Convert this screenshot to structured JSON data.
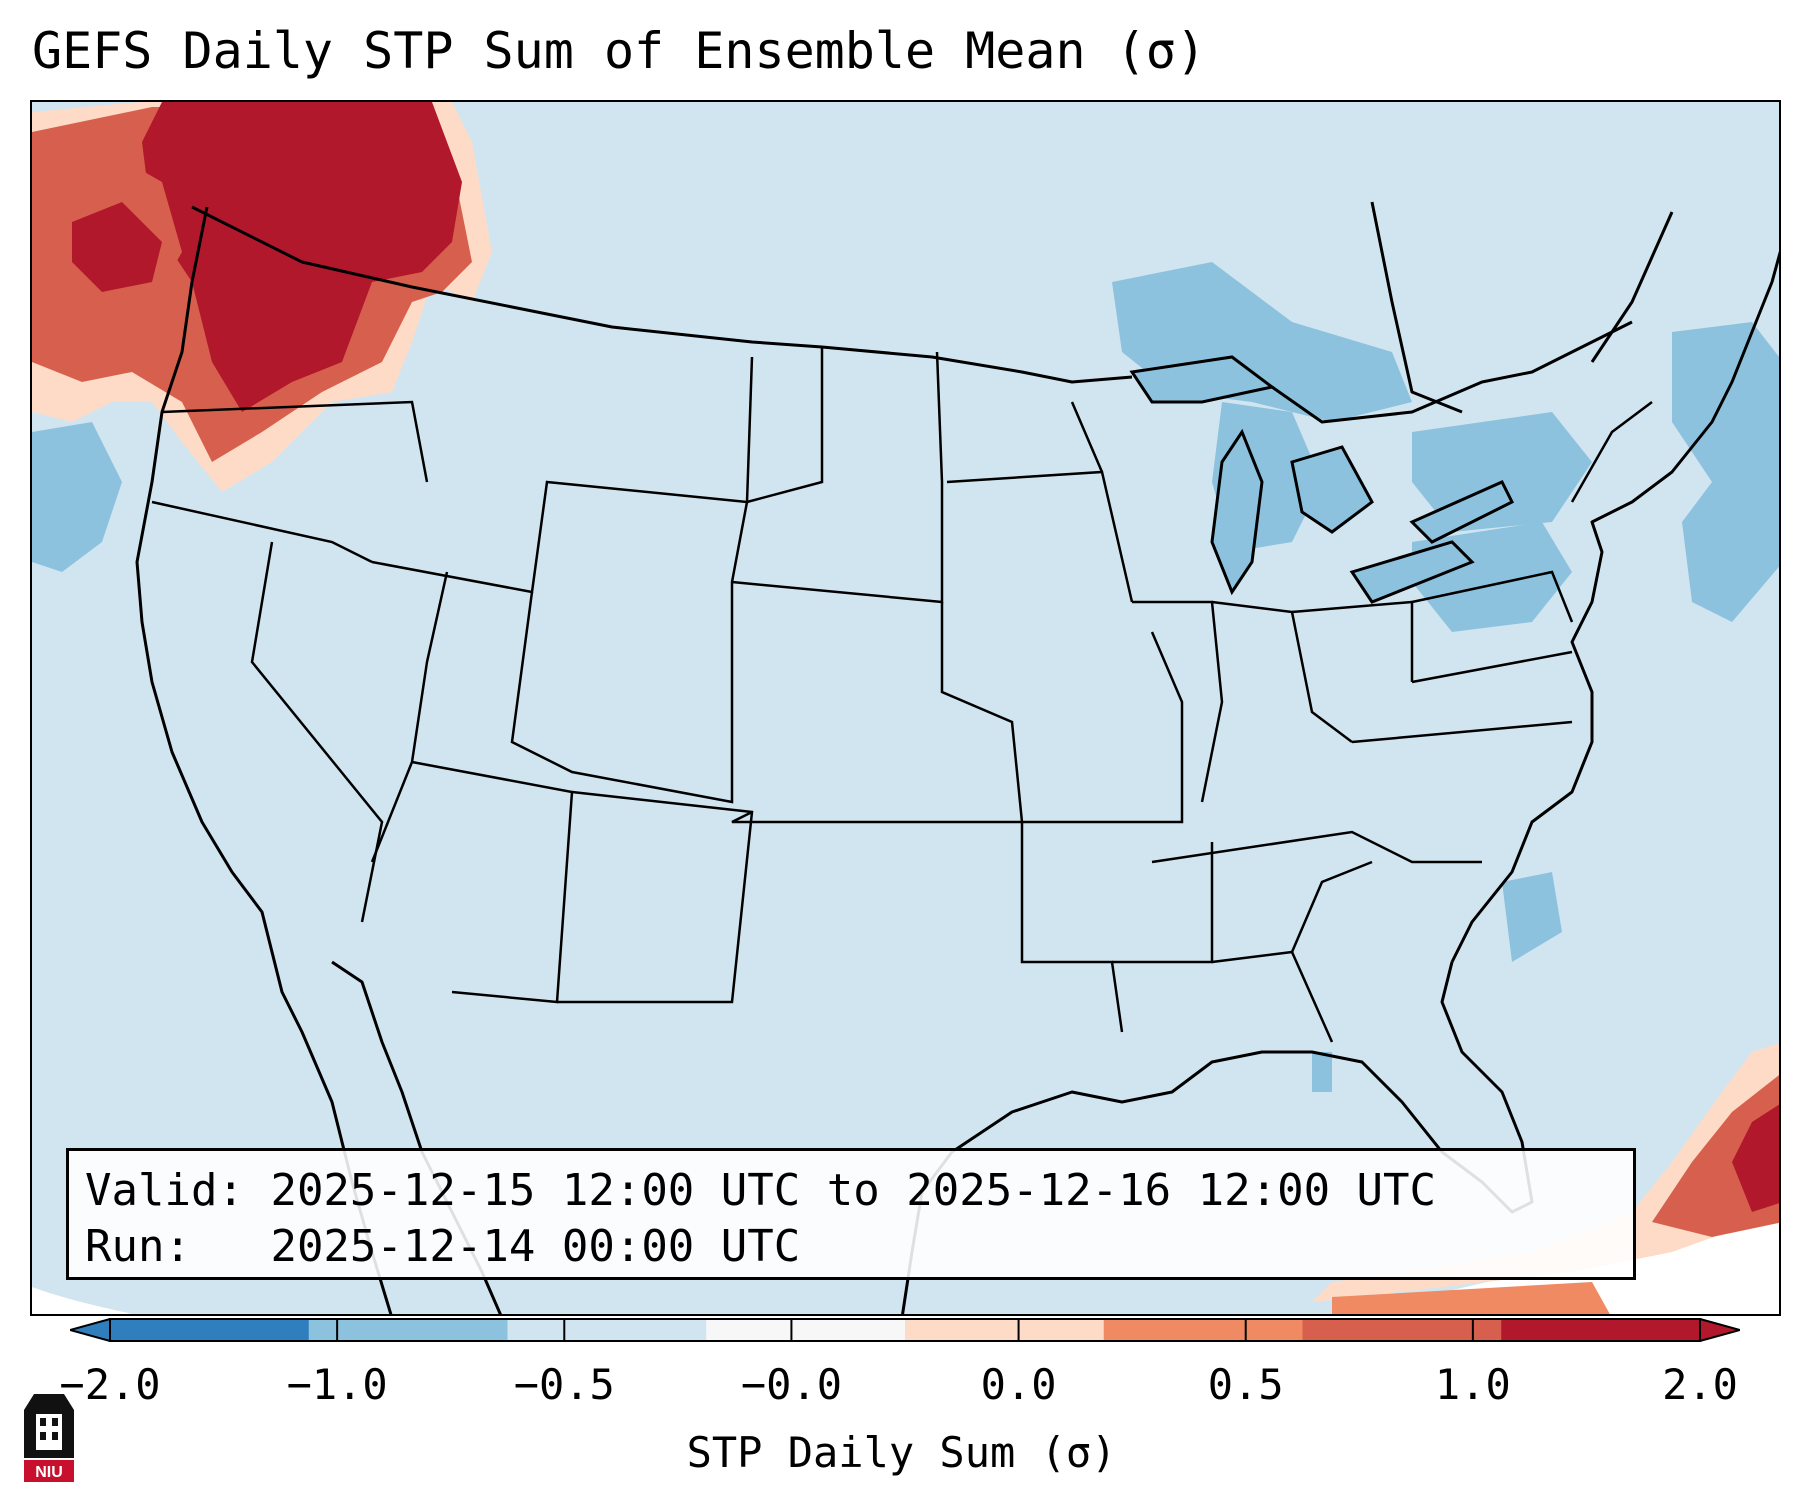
{
  "title": "GEFS Daily STP Sum of Ensemble Mean (σ)",
  "info": {
    "valid_label": "Valid:",
    "valid_value": "2025-12-15 12:00 UTC to 2025-12-16 12:00 UTC",
    "run_label": "Run:",
    "run_value": "2025-12-14 00:00 UTC"
  },
  "colorbar": {
    "label": "STP Daily Sum (σ)",
    "ticks": [
      "−2.0",
      "−1.0",
      "−0.5",
      "−0.0",
      "0.0",
      "0.5",
      "1.0",
      "2.0"
    ],
    "bins": [
      {
        "color": "#2f7fbf"
      },
      {
        "color": "#8dc2df"
      },
      {
        "color": "#d1e5f0"
      },
      {
        "color": "#f7f7f7"
      },
      {
        "color": "#fddbc7"
      },
      {
        "color": "#ef8a62"
      },
      {
        "color": "#d6604d"
      },
      {
        "color": "#b2182b"
      }
    ]
  },
  "map": {
    "background_color": "#d1e5f0",
    "region": "Contiguous United States with state borders",
    "features": [
      "coastlines",
      "state-borders",
      "country-borders"
    ]
  },
  "logo": {
    "text": "NIU",
    "color": "#c8102e"
  }
}
